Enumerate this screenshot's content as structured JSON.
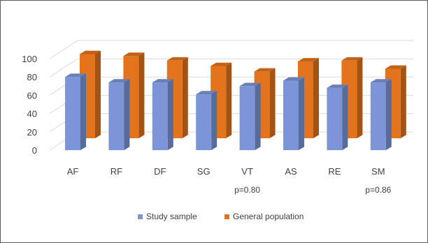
{
  "chart_data": {
    "type": "bar",
    "title": "",
    "xlabel": "",
    "ylabel": "",
    "ylim": [
      0,
      100
    ],
    "yticks": [
      0,
      20,
      40,
      60,
      80,
      100
    ],
    "categories": [
      "AF",
      "RF",
      "DF",
      "SG",
      "VT",
      "AS",
      "RE",
      "SM"
    ],
    "category_notes": [
      "",
      "",
      "",
      "",
      "p=0.80",
      "",
      "",
      "p=0.86"
    ],
    "series": [
      {
        "name": "Study sample",
        "values": [
          80,
          74,
          74,
          61,
          70,
          76,
          68,
          74
        ],
        "color": "#7c95d6"
      },
      {
        "name": "General population",
        "values": [
          92,
          90,
          85,
          79,
          73,
          84,
          85,
          76
        ],
        "color": "#e3731c"
      }
    ],
    "legend_position": "bottom",
    "grid": true,
    "style": "3d-column"
  }
}
